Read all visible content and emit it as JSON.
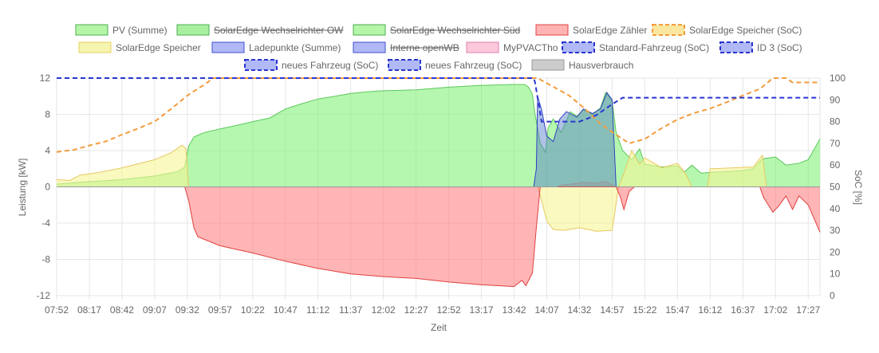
{
  "chart_data": {
    "type": "area",
    "xlabel": "Zeit",
    "ylabel_left": "Leistung [kW]",
    "ylabel_right": "SoC [%]",
    "ylim_left": [
      -12,
      12
    ],
    "ylim_right": [
      0,
      100
    ],
    "yticks_left": [
      "12",
      "8",
      "4",
      "0",
      "-4",
      "-8",
      "-12"
    ],
    "yticks_right": [
      "100",
      "90",
      "80",
      "70",
      "60",
      "50",
      "40",
      "30",
      "20",
      "10",
      "0"
    ],
    "xticks": [
      "07:52",
      "08:17",
      "08:42",
      "09:07",
      "09:32",
      "09:57",
      "10:22",
      "10:47",
      "11:12",
      "11:37",
      "12:02",
      "12:27",
      "12:52",
      "13:17",
      "13:42",
      "14:07",
      "14:32",
      "14:57",
      "15:22",
      "15:47",
      "16:12",
      "16:37",
      "17:02",
      "17:27"
    ],
    "x_start": "07:52",
    "x_end": "17:36",
    "grid": true,
    "legend_position": "top",
    "legend": [
      {
        "label": "PV (Summe)",
        "fill": "#b4f5a8",
        "stroke": "#4caf50",
        "dashed": false,
        "hidden": false
      },
      {
        "label": "SolarEdge Wechselrichter OW",
        "fill": "#a8f0a0",
        "stroke": "#4caf50",
        "dashed": false,
        "hidden": true
      },
      {
        "label": "SolarEdge Wechselrichter Süd",
        "fill": "#b4f5a8",
        "stroke": "#4caf50",
        "dashed": false,
        "hidden": true
      },
      {
        "label": "SolarEdge Zähler",
        "fill": "#ffb3b3",
        "stroke": "#e04040",
        "dashed": false,
        "hidden": false
      },
      {
        "label": "SolarEdge Speicher (SoC)",
        "fill": "#fbe6a0",
        "stroke": "#f39c3c",
        "dashed": true,
        "hidden": false
      },
      {
        "label": "SolarEdge Speicher",
        "fill": "#f5f5b0",
        "stroke": "#e8d060",
        "dashed": false,
        "hidden": false
      },
      {
        "label": "Ladepunkte (Summe)",
        "fill": "#b0b8f5",
        "stroke": "#4050d0",
        "dashed": false,
        "hidden": false
      },
      {
        "label": "Interne openWB",
        "fill": "#b0b8f5",
        "stroke": "#4050d0",
        "dashed": false,
        "hidden": true
      },
      {
        "label": "MyPVACTho",
        "fill": "#fbc8dc",
        "stroke": "#e080b0",
        "dashed": false,
        "hidden": false
      },
      {
        "label": "Standard-Fahrzeug (SoC)",
        "fill": "#b0b8f5",
        "stroke": "#2a35d0",
        "dashed": true,
        "hidden": false
      },
      {
        "label": "ID 3 (SoC)",
        "fill": "#b0b8f5",
        "stroke": "#2a35d0",
        "dashed": true,
        "hidden": false
      },
      {
        "label": "neues Fahrzeug (SoC)",
        "fill": "#b0b8f5",
        "stroke": "#2a35d0",
        "dashed": true,
        "hidden": false
      },
      {
        "label": "neues Fahrzeug (SoC)",
        "fill": "#b0b8f5",
        "stroke": "#2a35d0",
        "dashed": true,
        "hidden": false
      },
      {
        "label": "Hausverbrauch",
        "fill": "#cccccc",
        "stroke": "#999999",
        "dashed": false,
        "hidden": false
      }
    ],
    "series": [
      {
        "name": "PV (Summe)",
        "axis": "left",
        "kind": "area",
        "fill": "rgba(120,240,110,0.55)",
        "stroke": "#5cc85c",
        "points": [
          [
            "07:52",
            0.3
          ],
          [
            "08:10",
            0.5
          ],
          [
            "08:42",
            0.8
          ],
          [
            "09:07",
            1.2
          ],
          [
            "09:25",
            1.7
          ],
          [
            "09:30",
            2.2
          ],
          [
            "09:33",
            4.5
          ],
          [
            "09:37",
            5.5
          ],
          [
            "09:45",
            6.0
          ],
          [
            "09:57",
            6.4
          ],
          [
            "10:10",
            6.8
          ],
          [
            "10:22",
            7.2
          ],
          [
            "10:35",
            7.6
          ],
          [
            "10:47",
            8.6
          ],
          [
            "11:00",
            9.2
          ],
          [
            "11:12",
            9.7
          ],
          [
            "11:25",
            10.0
          ],
          [
            "11:37",
            10.3
          ],
          [
            "11:50",
            10.5
          ],
          [
            "12:02",
            10.6
          ],
          [
            "12:27",
            10.7
          ],
          [
            "12:52",
            11.0
          ],
          [
            "13:17",
            11.2
          ],
          [
            "13:42",
            11.3
          ],
          [
            "13:50",
            11.3
          ],
          [
            "13:53",
            11.0
          ],
          [
            "13:56",
            10.2
          ],
          [
            "13:58",
            8.0
          ],
          [
            "14:02",
            4.8
          ],
          [
            "14:06",
            3.8
          ],
          [
            "14:08",
            6.5
          ],
          [
            "14:12",
            7.5
          ],
          [
            "14:18",
            6.0
          ],
          [
            "14:25",
            8.3
          ],
          [
            "14:30",
            7.8
          ],
          [
            "14:35",
            8.5
          ],
          [
            "14:42",
            8.0
          ],
          [
            "14:48",
            8.7
          ],
          [
            "14:52",
            10.4
          ],
          [
            "14:57",
            9.5
          ],
          [
            "15:00",
            6.0
          ],
          [
            "15:05",
            4.0
          ],
          [
            "15:12",
            3.0
          ],
          [
            "15:18",
            4.2
          ],
          [
            "15:22",
            2.5
          ],
          [
            "15:35",
            2.2
          ],
          [
            "15:47",
            2.3
          ],
          [
            "15:52",
            1.6
          ],
          [
            "15:58",
            2.4
          ],
          [
            "16:05",
            1.5
          ],
          [
            "16:12",
            1.6
          ],
          [
            "16:25",
            1.7
          ],
          [
            "16:37",
            1.8
          ],
          [
            "16:45",
            2.0
          ],
          [
            "16:52",
            3.1
          ],
          [
            "17:02",
            3.3
          ],
          [
            "17:10",
            2.4
          ],
          [
            "17:20",
            2.6
          ],
          [
            "17:27",
            3.0
          ],
          [
            "17:36",
            5.3
          ]
        ]
      },
      {
        "name": "SolarEdge Speicher",
        "axis": "left",
        "kind": "area",
        "fill": "rgba(245,245,150,0.6)",
        "stroke": "#e8c860",
        "points": [
          [
            "07:52",
            0.8
          ],
          [
            "08:02",
            0.7
          ],
          [
            "08:10",
            1.3
          ],
          [
            "08:25",
            1.6
          ],
          [
            "08:42",
            2.1
          ],
          [
            "09:07",
            3.0
          ],
          [
            "09:20",
            3.8
          ],
          [
            "09:28",
            4.6
          ],
          [
            "09:31",
            4.2
          ],
          [
            "09:33",
            0.0
          ],
          [
            "14:00",
            0.0
          ],
          [
            "14:03",
            -1.5
          ],
          [
            "14:07",
            -3.8
          ],
          [
            "14:12",
            -4.7
          ],
          [
            "14:20",
            -4.8
          ],
          [
            "14:32",
            -4.5
          ],
          [
            "14:45",
            -4.9
          ],
          [
            "14:57",
            -4.8
          ],
          [
            "15:02",
            0.0
          ],
          [
            "15:06",
            1.5
          ],
          [
            "15:12",
            4.0
          ],
          [
            "15:18",
            2.5
          ],
          [
            "15:22",
            3.2
          ],
          [
            "15:35",
            2.1
          ],
          [
            "15:47",
            2.6
          ],
          [
            "15:53",
            1.5
          ],
          [
            "15:58",
            0.0
          ],
          [
            "16:10",
            0.0
          ],
          [
            "16:12",
            2.0
          ],
          [
            "16:30",
            2.1
          ],
          [
            "16:45",
            2.2
          ],
          [
            "16:52",
            3.5
          ],
          [
            "16:55",
            0.0
          ],
          [
            "17:36",
            0.0
          ]
        ]
      },
      {
        "name": "SolarEdge Zähler",
        "axis": "left",
        "kind": "area",
        "fill": "rgba(255,120,120,0.55)",
        "stroke": "#e04040",
        "points": [
          [
            "07:52",
            0.0
          ],
          [
            "09:30",
            0.0
          ],
          [
            "09:33",
            -1.5
          ],
          [
            "09:37",
            -4.5
          ],
          [
            "09:40",
            -5.5
          ],
          [
            "09:57",
            -6.5
          ],
          [
            "10:22",
            -7.3
          ],
          [
            "10:47",
            -8.2
          ],
          [
            "11:12",
            -9.0
          ],
          [
            "11:37",
            -9.6
          ],
          [
            "12:02",
            -9.9
          ],
          [
            "12:27",
            -10.1
          ],
          [
            "12:52",
            -10.5
          ],
          [
            "13:17",
            -10.8
          ],
          [
            "13:42",
            -11.0
          ],
          [
            "13:48",
            -10.3
          ],
          [
            "13:51",
            -10.9
          ],
          [
            "13:56",
            -9.5
          ],
          [
            "13:59",
            -4.5
          ],
          [
            "14:02",
            0.0
          ],
          [
            "15:00",
            0.0
          ],
          [
            "15:03",
            -1.0
          ],
          [
            "15:06",
            -2.5
          ],
          [
            "15:10",
            -0.5
          ],
          [
            "15:14",
            0.0
          ],
          [
            "16:50",
            0.0
          ],
          [
            "16:53",
            -1.2
          ],
          [
            "17:00",
            -2.8
          ],
          [
            "17:05",
            -2.0
          ],
          [
            "17:10",
            -1.0
          ],
          [
            "17:15",
            -2.5
          ],
          [
            "17:20",
            -1.0
          ],
          [
            "17:27",
            -2.0
          ],
          [
            "17:36",
            -5.0
          ]
        ]
      },
      {
        "name": "Ladepunkte (Summe)",
        "axis": "left",
        "kind": "area",
        "fill": "rgba(80,120,200,0.45)",
        "stroke": "#3040c0",
        "points": [
          [
            "07:52",
            0.0
          ],
          [
            "13:57",
            0.0
          ],
          [
            "13:59",
            2.0
          ],
          [
            "14:00",
            10.0
          ],
          [
            "14:03",
            8.5
          ],
          [
            "14:07",
            5.6
          ],
          [
            "14:12",
            5.0
          ],
          [
            "14:17",
            7.5
          ],
          [
            "14:22",
            8.3
          ],
          [
            "14:30",
            7.7
          ],
          [
            "14:35",
            8.6
          ],
          [
            "14:42",
            8.1
          ],
          [
            "14:48",
            8.6
          ],
          [
            "14:53",
            10.4
          ],
          [
            "14:57",
            9.6
          ],
          [
            "15:00",
            0.0
          ],
          [
            "17:36",
            0.0
          ]
        ]
      },
      {
        "name": "Hausverbrauch",
        "axis": "left",
        "kind": "area",
        "fill": "rgba(150,150,150,0.45)",
        "stroke": "#999999",
        "points": [
          [
            "07:52",
            0.0
          ],
          [
            "14:15",
            0.0
          ],
          [
            "14:18",
            0.2
          ],
          [
            "14:25",
            0.3
          ],
          [
            "14:35",
            0.5
          ],
          [
            "14:45",
            0.4
          ],
          [
            "14:52",
            0.6
          ],
          [
            "15:00",
            0.0
          ],
          [
            "17:36",
            0.0
          ]
        ]
      },
      {
        "name": "SolarEdge Speicher (SoC)",
        "axis": "right",
        "kind": "line",
        "stroke": "#f39c3c",
        "dashed": true,
        "points": [
          [
            "07:52",
            66
          ],
          [
            "08:05",
            67
          ],
          [
            "08:17",
            69
          ],
          [
            "08:30",
            71
          ],
          [
            "08:42",
            74
          ],
          [
            "08:55",
            77
          ],
          [
            "09:07",
            80
          ],
          [
            "09:20",
            86
          ],
          [
            "09:32",
            92
          ],
          [
            "09:45",
            97
          ],
          [
            "09:52",
            100
          ],
          [
            "13:52",
            100
          ],
          [
            "14:00",
            100
          ],
          [
            "14:12",
            96
          ],
          [
            "14:24",
            92
          ],
          [
            "14:36",
            86
          ],
          [
            "14:48",
            79
          ],
          [
            "15:00",
            74
          ],
          [
            "15:10",
            70
          ],
          [
            "15:22",
            72
          ],
          [
            "15:35",
            77
          ],
          [
            "15:47",
            81
          ],
          [
            "16:00",
            84
          ],
          [
            "16:12",
            86
          ],
          [
            "16:25",
            89
          ],
          [
            "16:37",
            92
          ],
          [
            "16:50",
            95
          ],
          [
            "17:00",
            100
          ],
          [
            "17:10",
            100
          ],
          [
            "17:15",
            98
          ],
          [
            "17:36",
            98
          ]
        ]
      },
      {
        "name": "Standard-Fahrzeug (SoC)",
        "axis": "right",
        "kind": "line",
        "stroke": "#2a35d0",
        "dashed": true,
        "points": [
          [
            "07:52",
            100
          ],
          [
            "13:57",
            100
          ],
          [
            "13:58",
            98
          ],
          [
            "14:03",
            80
          ],
          [
            "14:12",
            80
          ],
          [
            "14:32",
            80
          ],
          [
            "14:45",
            83
          ],
          [
            "14:57",
            88
          ],
          [
            "15:05",
            91
          ],
          [
            "17:36",
            91
          ]
        ]
      }
    ]
  }
}
